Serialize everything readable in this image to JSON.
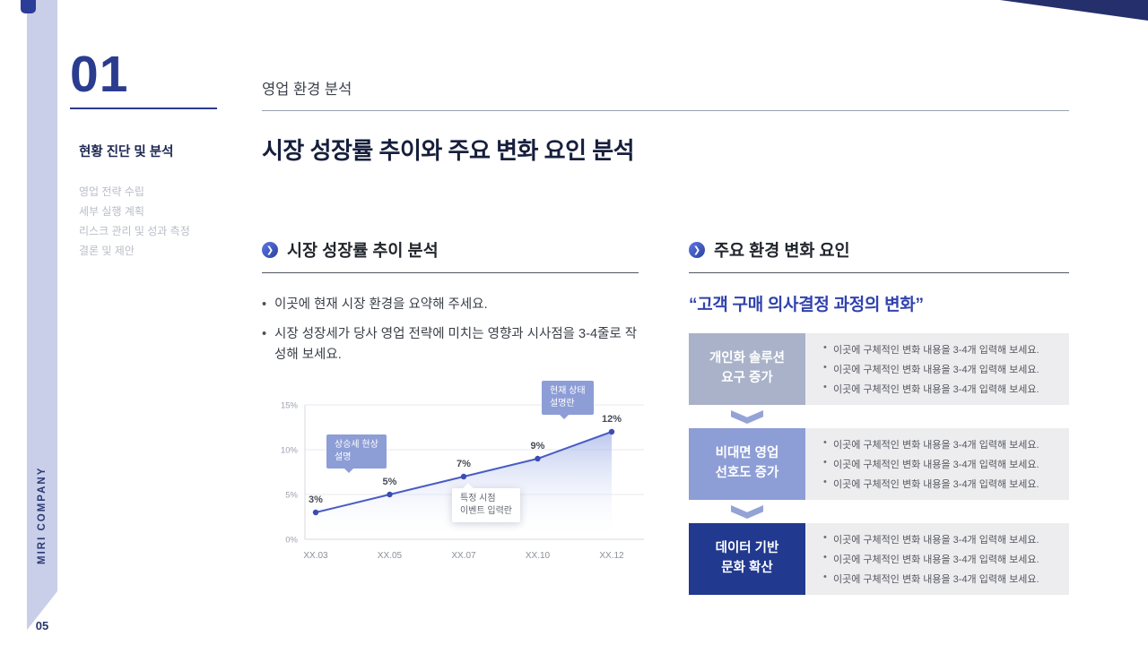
{
  "deck": {
    "page_number": "05",
    "brand": "MIRI COMPANY",
    "section_number": "01",
    "kicker": "영업 환경 분석",
    "title": "시장 성장률 추이와 주요 변화 요인 분석"
  },
  "nav": {
    "active": "현황 진단 및 분석",
    "items": [
      "영업 전략 수립",
      "세부 실행 계획",
      "리스크 관리 및 성과 측정",
      "결론 및 제안"
    ]
  },
  "growth_section": {
    "heading": "시장 성장률 추이 분석",
    "bullets": [
      "이곳에 현재 시장 환경을 요약해 주세요.",
      "시장 성장세가 당사 영업 전략에 미치는 영향과 시사점을 3-4줄로 작성해 보세요."
    ]
  },
  "chart_data": {
    "type": "area",
    "x": [
      "XX.03",
      "XX.05",
      "XX.07",
      "XX.10",
      "XX.12"
    ],
    "values": [
      3,
      5,
      7,
      9,
      12
    ],
    "point_labels": [
      "3%",
      "5%",
      "7%",
      "9%",
      "12%"
    ],
    "ylim": [
      0,
      15
    ],
    "ytick_values": [
      0,
      5,
      10,
      15
    ],
    "ytick_labels": [
      "0%",
      "5%",
      "10%",
      "15%"
    ],
    "grid": true,
    "legend": false,
    "line_color": "#4a5cc5",
    "annotations": [
      {
        "line1": "상승세 현상",
        "line2": "설명",
        "style": "blue"
      },
      {
        "line1": "특정 시점",
        "line2": "이벤트 입력란",
        "style": "white"
      },
      {
        "line1": "현재 상태",
        "line2": "설명란",
        "style": "blue"
      }
    ]
  },
  "factors_section": {
    "heading": "주요 환경 변화 요인",
    "quote": "“고객 구매 의사결정 과정의 변화”",
    "arrow_color": "#94a3d6",
    "rows": [
      {
        "label1": "개인화 솔루션",
        "label2": "요구 증가",
        "color": "#a9b2c9",
        "bullets": [
          "이곳에 구체적인 변화 내용을 3-4개 입력해 보세요.",
          "이곳에 구체적인 변화 내용을 3-4개 입력해 보세요.",
          "이곳에 구체적인 변화 내용을 3-4개 입력해 보세요."
        ]
      },
      {
        "label1": "비대면 영업",
        "label2": "선호도 증가",
        "color": "#8d9dd6",
        "bullets": [
          "이곳에 구체적인 변화 내용을 3-4개 입력해 보세요.",
          "이곳에 구체적인 변화 내용을 3-4개 입력해 보세요.",
          "이곳에 구체적인 변화 내용을 3-4개 입력해 보세요."
        ]
      },
      {
        "label1": "데이터 기반",
        "label2": "문화 확산",
        "color": "#21398f",
        "bullets": [
          "이곳에 구체적인 변화 내용을 3-4개 입력해 보세요.",
          "이곳에 구체적인 변화 내용을 3-4개 입력해 보세요.",
          "이곳에 구체적인 변화 내용을 3-4개 입력해 보세요."
        ]
      }
    ]
  }
}
